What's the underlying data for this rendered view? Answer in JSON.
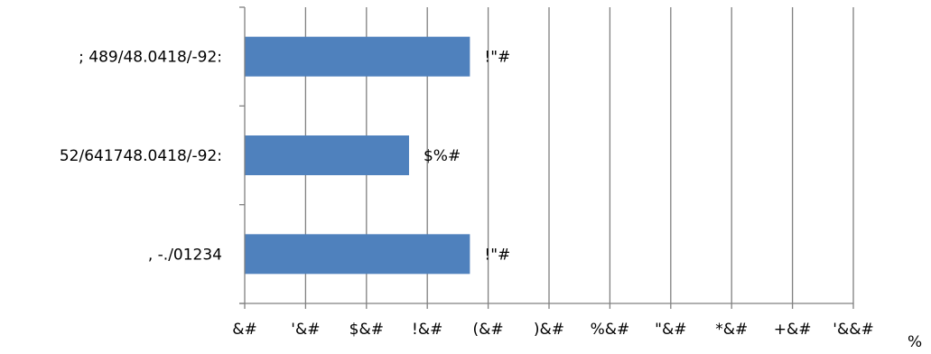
{
  "chart_data": {
    "type": "bar",
    "orientation": "horizontal",
    "title": "",
    "xlabel": "",
    "ylabel": "",
    "categories": [
      "; 489/48.0418/-92:",
      "52/641748.0418/-92:",
      ", -./01234"
    ],
    "values": [
      37,
      27,
      37
    ],
    "data_labels": [
      "!\"#",
      "$%#",
      "!\"#"
    ],
    "xlim": [
      0,
      100
    ],
    "x_tick_values": [
      0,
      10,
      20,
      30,
      40,
      50,
      60,
      70,
      80,
      90,
      100
    ],
    "x_tick_labels": [
      "&#",
      "'&#",
      "$&#",
      "!&#",
      "(&#",
      ")&#",
      "%&#",
      "\"&#",
      "*&#",
      "+&#",
      "'&&#"
    ],
    "axis_corner_label": "%",
    "grid": true,
    "legend": "none",
    "colors": {
      "bar": "#4F81BD",
      "grid": "#808080",
      "axis": "#808080",
      "text": "#000000"
    }
  }
}
